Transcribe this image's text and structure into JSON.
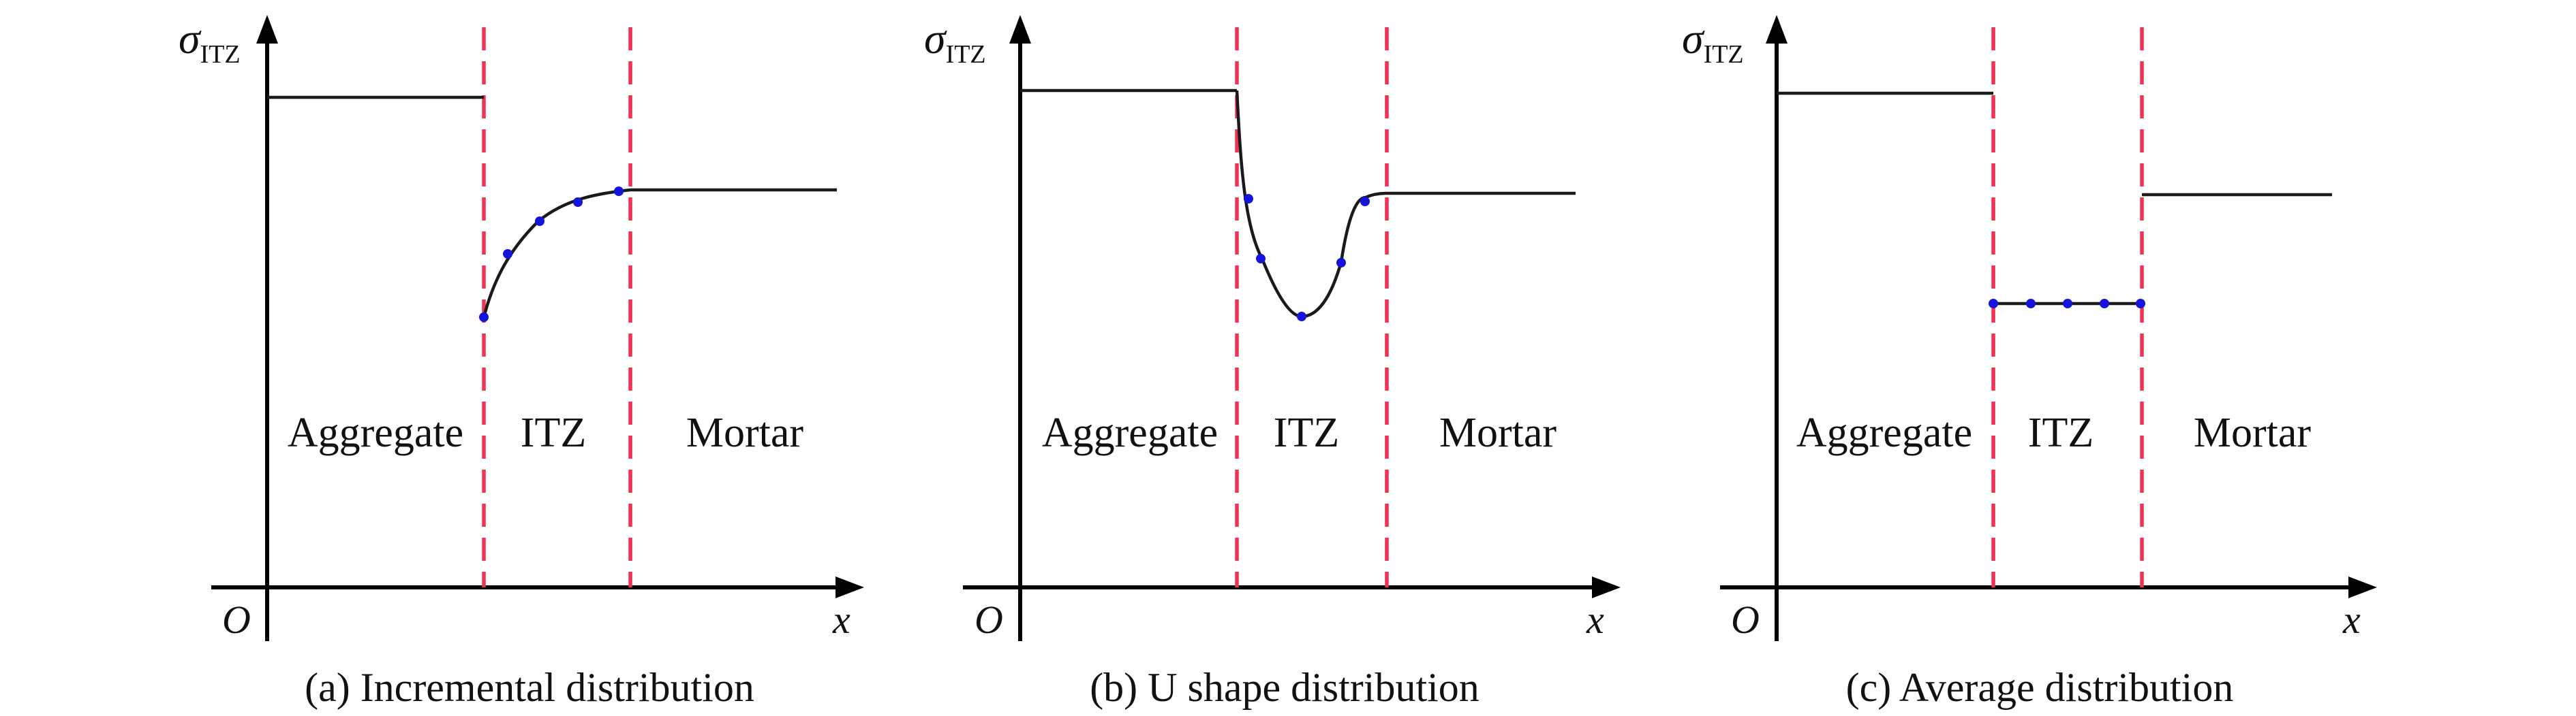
{
  "panels": [
    {
      "id": "a",
      "y_label": "σ",
      "y_label_sub": "ITZ",
      "origin_label": "O",
      "x_label": "x",
      "regions": [
        "Aggregate",
        "ITZ",
        "Mortar"
      ],
      "caption": "(a) Incremental distribution"
    },
    {
      "id": "b",
      "y_label": "σ",
      "y_label_sub": "ITZ",
      "origin_label": "O",
      "x_label": "x",
      "regions": [
        "Aggregate",
        "ITZ",
        "Mortar"
      ],
      "caption": "(b) U shape distribution"
    },
    {
      "id": "c",
      "y_label": "σ",
      "y_label_sub": "ITZ",
      "origin_label": "O",
      "x_label": "x",
      "regions": [
        "Aggregate",
        "ITZ",
        "Mortar"
      ],
      "caption": "(c) Average distribution"
    }
  ],
  "colors": {
    "divider": "#ee3355",
    "marker": "#1414dd",
    "curve": "#1a1a1a",
    "axis": "#000000"
  }
}
